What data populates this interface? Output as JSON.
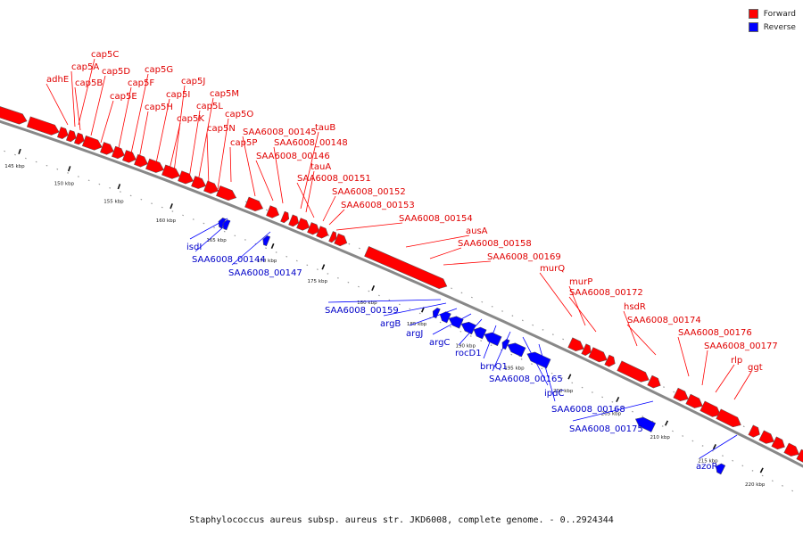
{
  "legend": [
    {
      "label": "Forward",
      "color": "#ff0000"
    },
    {
      "label": "Reverse",
      "color": "#0000ff"
    }
  ],
  "caption": "Staphylococcus aureus subsp. aureus str. JKD6008, complete genome. - 0..2924344",
  "ticks": [
    "145 kbp",
    "150 kbp",
    "155 kbp",
    "160 kbp",
    "165 kbp",
    "170 kbp",
    "175 kbp",
    "180 kbp",
    "185 kbp",
    "190 kbp",
    "195 kbp",
    "200 kbp",
    "205 kbp",
    "210 kbp",
    "215 kbp",
    "220 kbp"
  ],
  "colors": {
    "forward": "#ff0000",
    "reverse": "#0000ff",
    "backbone": "#888888"
  },
  "forward_genes": [
    "adhE",
    "cap5A",
    "cap5B",
    "cap5C",
    "cap5D",
    "cap5E",
    "cap5F",
    "cap5G",
    "cap5H",
    "cap5I",
    "cap5J",
    "cap5K",
    "cap5L",
    "cap5M",
    "cap5N",
    "cap5O",
    "cap5P",
    "SAA6008_00145",
    "SAA6008_00146",
    "SAA6008_00148",
    "tauB",
    "tauA",
    "SAA6008_00151",
    "SAA6008_00152",
    "SAA6008_00153",
    "SAA6008_00154",
    "ausA",
    "SAA6008_00158",
    "SAA6008_00169",
    "murQ",
    "murP",
    "SAA6008_00172",
    "hsdR",
    "SAA6008_00174",
    "SAA6008_00176",
    "SAA6008_00177",
    "rlp",
    "ggt"
  ],
  "reverse_genes": [
    "isdI",
    "SAA6008_00144",
    "SAA6008_00147",
    "SAA6008_00159",
    "argB",
    "argJ",
    "argC",
    "rocD1",
    "brnQ1",
    "SAA6008_00165",
    "ipdC",
    "SAA6008_00168",
    "SAA6008_00175",
    "azoR"
  ]
}
